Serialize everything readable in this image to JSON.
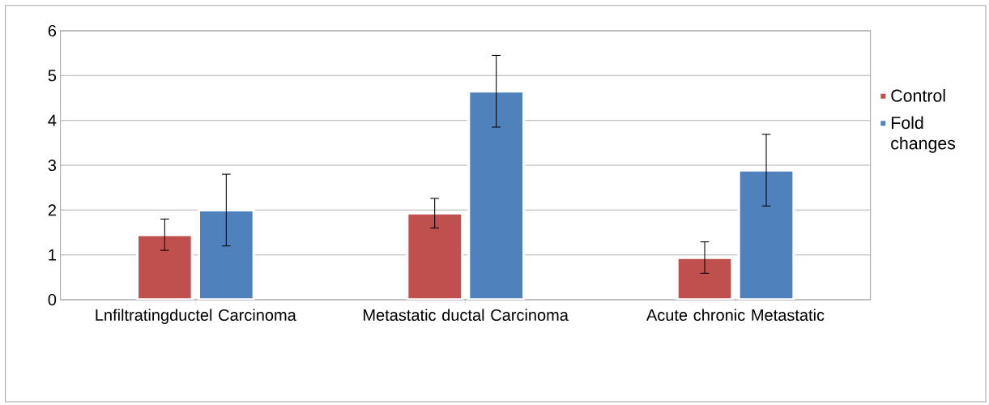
{
  "chart_data": {
    "type": "bar",
    "categories": [
      "Lnfiltratingductel Carcinoma",
      "Metastatic ductal Carcinoma",
      "Acute chronic Metastatic"
    ],
    "series": [
      {
        "name": "Control",
        "color": "#c0504d",
        "values": [
          1.45,
          1.93,
          0.94
        ],
        "errors": [
          0.35,
          0.33,
          0.35
        ]
      },
      {
        "name": "Fold changes",
        "color": "#4f81bd",
        "values": [
          2.0,
          4.65,
          2.89
        ],
        "errors": [
          0.8,
          0.8,
          0.8
        ]
      }
    ],
    "ylim": [
      0,
      6
    ],
    "yticks": [
      0,
      1,
      2,
      3,
      4,
      5,
      6
    ],
    "grid": "y",
    "legend": "right"
  }
}
